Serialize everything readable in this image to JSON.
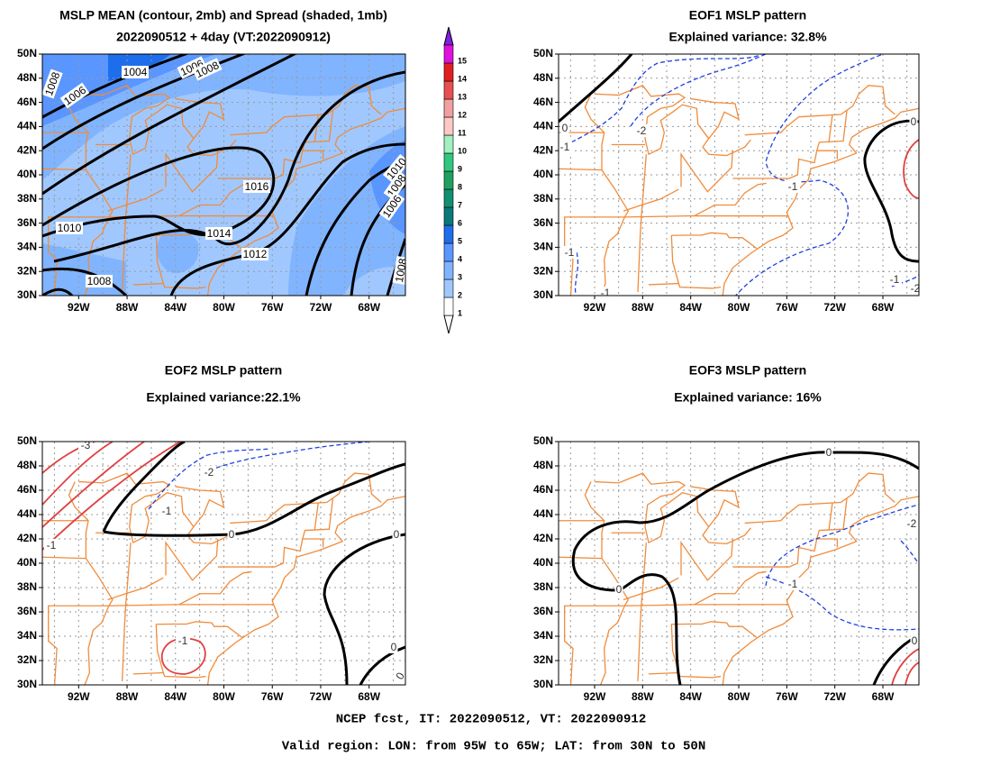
{
  "panels": [
    {
      "title": [
        "MSLP MEAN (contour, 2mb) and Spread (shaded, 1mb)",
        "2022090512 + 4day (VT:2022090912)"
      ],
      "yticks": [
        "50N",
        "48N",
        "46N",
        "44N",
        "42N",
        "40N",
        "38N",
        "36N",
        "34N",
        "32N",
        "30N"
      ],
      "xticks": [
        "92W",
        "88W",
        "84W",
        "80W",
        "76W",
        "72W",
        "68W"
      ],
      "contour_labels": [
        "1004",
        "1006",
        "1008",
        "1006",
        "1008",
        "1016",
        "1014",
        "1012",
        "1010",
        "1008",
        "1010",
        "1008",
        "1006",
        "1008"
      ]
    },
    {
      "title": [
        "EOF1 MSLP pattern",
        "Explained variance: 32.8%"
      ],
      "yticks": [
        "50N",
        "48N",
        "46N",
        "44N",
        "42N",
        "40N",
        "38N",
        "36N",
        "34N",
        "32N",
        "30N"
      ],
      "xticks": [
        "92W",
        "88W",
        "84W",
        "80W",
        "76W",
        "72W",
        "68W"
      ],
      "contour_labels": [
        "0",
        "-1",
        "-2",
        "0",
        "-1",
        "-1",
        "-1",
        "-1",
        "-2"
      ]
    },
    {
      "title": [
        "EOF2 MSLP pattern",
        "Explained variance:22.1%"
      ],
      "yticks": [
        "50N",
        "48N",
        "46N",
        "44N",
        "42N",
        "40N",
        "38N",
        "36N",
        "34N",
        "32N",
        "30N"
      ],
      "xticks": [
        "92W",
        "88W",
        "84W",
        "80W",
        "76W",
        "72W",
        "68W"
      ],
      "contour_labels": [
        "-3",
        "-1",
        "-2",
        "-1",
        "0",
        "0",
        "-1",
        "0",
        "0"
      ]
    },
    {
      "title": [
        "EOF3 MSLP pattern",
        "Explained variance: 16%"
      ],
      "yticks": [
        "50N",
        "48N",
        "46N",
        "44N",
        "42N",
        "40N",
        "38N",
        "36N",
        "34N",
        "32N",
        "30N"
      ],
      "xticks": [
        "92W",
        "88W",
        "84W",
        "80W",
        "76W",
        "72W",
        "68W"
      ],
      "contour_labels": [
        "0",
        "0",
        "-2",
        "-1",
        "0"
      ]
    }
  ],
  "colorbar": {
    "labels": [
      "1",
      "2",
      "3",
      "4",
      "5",
      "6",
      "7",
      "8",
      "9",
      "10",
      "11",
      "12",
      "13",
      "14",
      "15"
    ]
  },
  "footer": [
    "NCEP fcst, IT: 2022090512, VT: 2022090912",
    "Valid region: LON: from 95W to 65W; LAT: from 30N to 50N"
  ]
}
